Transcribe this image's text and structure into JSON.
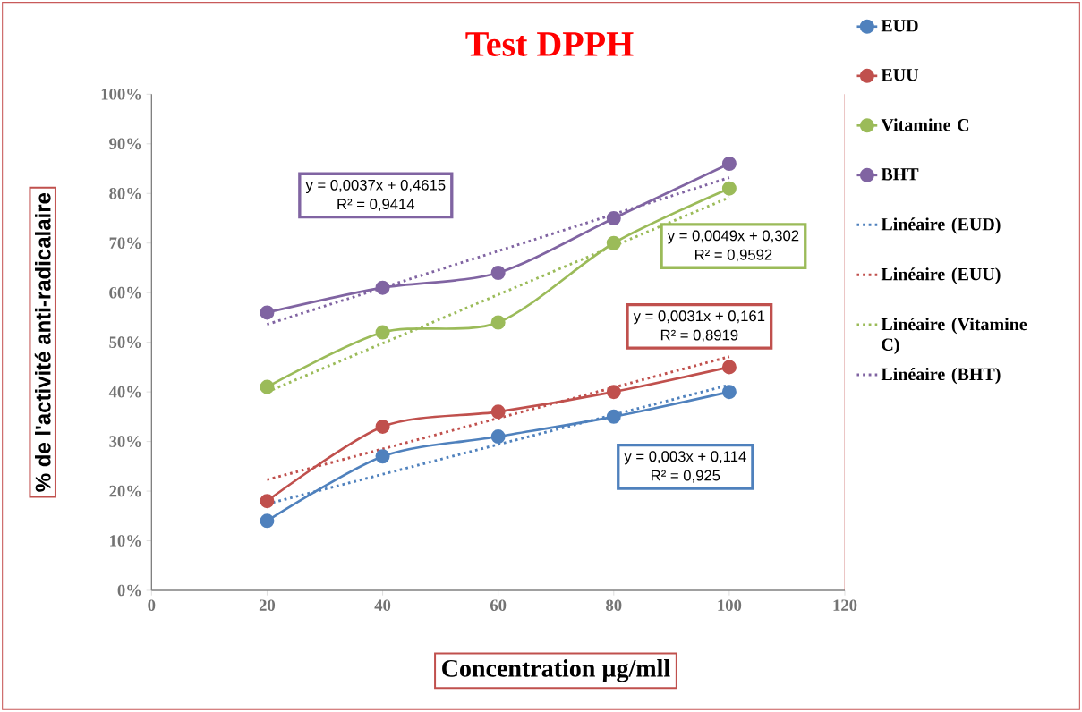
{
  "chart_data": {
    "type": "line",
    "title": "Test DPPH",
    "xlabel": "Concentration µg/mll",
    "ylabel": "% de l'activité anti-radicalaire",
    "x": [
      20,
      40,
      60,
      80,
      100
    ],
    "series": [
      {
        "name": "EUD",
        "color": "#4f81bd",
        "values": [
          14,
          27,
          31,
          35,
          40
        ]
      },
      {
        "name": "EUU",
        "color": "#c0504d",
        "values": [
          18,
          33,
          36,
          40,
          45
        ]
      },
      {
        "name": "Vitamine C",
        "color": "#9bbb59",
        "values": [
          41,
          52,
          54,
          70,
          81
        ]
      },
      {
        "name": "BHT",
        "color": "#8064a2",
        "values": [
          56,
          61,
          64,
          75,
          86
        ]
      },
      {
        "name": "Linéaire (EUD)",
        "color": "#4f81bd",
        "values": [
          17.4,
          23.4,
          29.4,
          35.4,
          41.4
        ],
        "marker": "none",
        "line_style": "dotted"
      },
      {
        "name": "Linéaire (EUU)",
        "color": "#c0504d",
        "values": [
          22.3,
          28.5,
          34.7,
          40.9,
          47.1
        ],
        "marker": "none",
        "line_style": "dotted"
      },
      {
        "name": "Linéaire (Vitamine C)",
        "color": "#9bbb59",
        "values": [
          40.0,
          49.8,
          59.6,
          69.4,
          79.2
        ],
        "marker": "none",
        "line_style": "dotted"
      },
      {
        "name": "Linéaire (BHT)",
        "color": "#8064a2",
        "values": [
          53.6,
          61.0,
          68.4,
          75.8,
          83.2
        ],
        "marker": "none",
        "line_style": "dotted"
      }
    ],
    "annotations": [
      "y = 0,0037x + 0,4615",
      "R² = 0,9414",
      "y = 0,0049x + 0,302",
      "R² = 0,9592",
      "y = 0,0031x + 0,161",
      "R² = 0,8919",
      "y = 0,003x + 0,114",
      "R² = 0,925"
    ],
    "xlim": [
      0,
      120
    ],
    "xticks": [
      0,
      20,
      40,
      60,
      80,
      100,
      120
    ],
    "ylim": [
      0,
      100
    ],
    "yticks": [
      {
        "value": 0,
        "label": "0%"
      },
      {
        "value": 10,
        "label": "10%"
      },
      {
        "value": 20,
        "label": "20%"
      },
      {
        "value": 30,
        "label": "30%"
      },
      {
        "value": 40,
        "label": "40%"
      },
      {
        "value": 50,
        "label": "50%"
      },
      {
        "value": 60,
        "label": "60%"
      },
      {
        "value": 70,
        "label": "70%"
      },
      {
        "value": 80,
        "label": "80%"
      },
      {
        "value": 90,
        "label": "90%"
      },
      {
        "value": 100,
        "label": "100%"
      }
    ],
    "marker": "circle",
    "line_style": "solid",
    "legend": "right",
    "grid": false
  }
}
